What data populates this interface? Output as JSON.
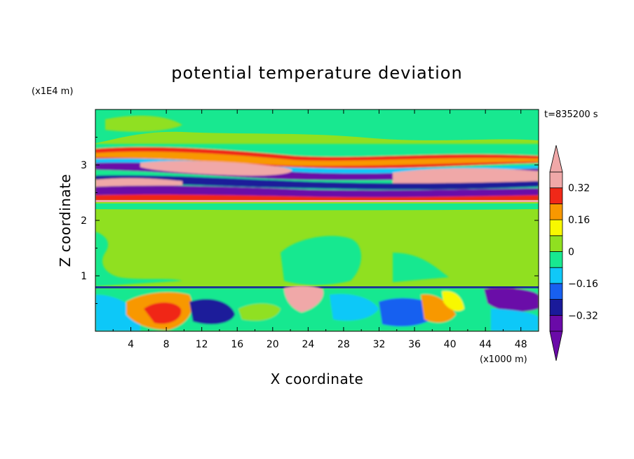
{
  "chart_data": {
    "type": "heatmap",
    "title": "potential temperature deviation",
    "xlabel": "X coordinate",
    "ylabel": "Z coordinate",
    "x_unit": "(x1000 m)",
    "y_unit": "(x1E4 m)",
    "time_label": "t=835200 s",
    "xlim": [
      0,
      50
    ],
    "ylim": [
      0,
      4
    ],
    "x_ticks": [
      4,
      8,
      12,
      16,
      20,
      24,
      28,
      32,
      36,
      40,
      44,
      48
    ],
    "y_ticks": [
      1,
      2,
      3
    ],
    "colorbar": {
      "levels": [
        -0.4,
        -0.32,
        -0.24,
        -0.16,
        -0.08,
        0,
        0.08,
        0.16,
        0.24,
        0.32,
        0.4
      ],
      "tick_values": [
        0.32,
        0.16,
        0,
        -0.16,
        -0.32
      ],
      "tick_labels": [
        "0.32",
        "0.16",
        "0",
        "−0.16",
        "−0.32"
      ],
      "colors": [
        "#6a0aa8",
        "#1a1a9a",
        "#1860f0",
        "#10c8f8",
        "#18e890",
        "#90e020",
        "#f8f800",
        "#f89800",
        "#f02818",
        "#f0a8a8"
      ],
      "above_color": "#f0a8a8",
      "below_color": "#6a0aa8",
      "extend": "both"
    }
  }
}
